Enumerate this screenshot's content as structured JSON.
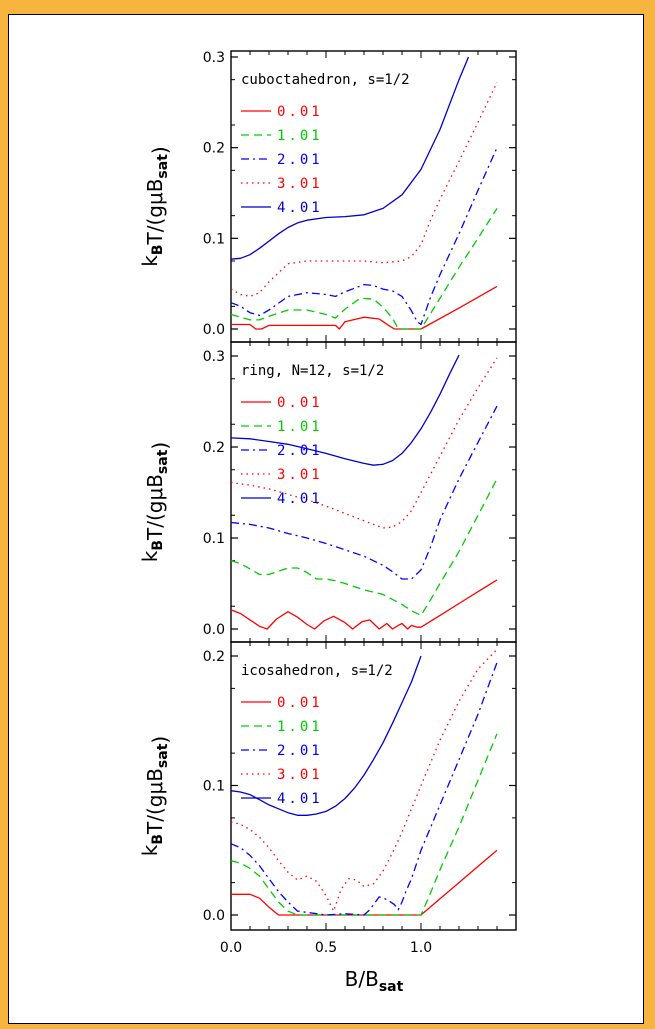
{
  "chart_data": {
    "type": "line",
    "xlabel": "B/B_sat",
    "xlim": [
      0,
      1.5
    ],
    "x_ticks": [
      "0.0",
      "0.5",
      "1.0"
    ],
    "series_styles": [
      {
        "name": "0.01",
        "color": "#ff0000",
        "dash": "none"
      },
      {
        "name": "1.01",
        "color": "#00cc00",
        "dash": "8,5"
      },
      {
        "name": "2.01",
        "color": "#0000ff",
        "dash": "8,4,2,4"
      },
      {
        "name": "3.01",
        "color": "#ff0000",
        "dash": "1.5,4"
      },
      {
        "name": "4.01",
        "color": "#0000cc",
        "dash": "none"
      }
    ],
    "panels": [
      {
        "title": "cuboctahedron, s=1/2",
        "ylabel": "kBT/(gμBsat)",
        "ylim": [
          0,
          0.3
        ],
        "y_ticks": [
          "0.0",
          "0.1",
          "0.2",
          "0.3"
        ],
        "series": [
          {
            "name": "0.01",
            "x": [
              0.0,
              0.05,
              0.1,
              0.13,
              0.16,
              0.2,
              0.3,
              0.45,
              0.55,
              0.57,
              0.6,
              0.7,
              0.78,
              0.83,
              0.86,
              0.88,
              1.0,
              1.2,
              1.4
            ],
            "y": [
              0.005,
              0.005,
              0.005,
              0.0,
              0.0,
              0.004,
              0.004,
              0.004,
              0.004,
              0.0,
              0.008,
              0.013,
              0.011,
              0.004,
              0.0,
              0.0,
              0.0,
              0.023,
              0.047
            ]
          },
          {
            "name": "1.01",
            "x": [
              0.0,
              0.05,
              0.1,
              0.15,
              0.2,
              0.3,
              0.4,
              0.5,
              0.55,
              0.6,
              0.68,
              0.75,
              0.8,
              0.85,
              0.88,
              0.95,
              1.0,
              1.1,
              1.2,
              1.3,
              1.4
            ],
            "y": [
              0.016,
              0.013,
              0.01,
              0.01,
              0.014,
              0.021,
              0.021,
              0.016,
              0.012,
              0.022,
              0.034,
              0.033,
              0.024,
              0.012,
              0.0,
              0.0,
              0.0,
              0.034,
              0.068,
              0.1,
              0.133
            ]
          },
          {
            "name": "2.01",
            "x": [
              0.0,
              0.05,
              0.1,
              0.15,
              0.2,
              0.3,
              0.4,
              0.5,
              0.55,
              0.6,
              0.7,
              0.75,
              0.8,
              0.85,
              0.9,
              0.95,
              0.98,
              1.0,
              1.05,
              1.1,
              1.2,
              1.3,
              1.4
            ],
            "y": [
              0.029,
              0.025,
              0.018,
              0.015,
              0.021,
              0.036,
              0.04,
              0.038,
              0.036,
              0.041,
              0.049,
              0.048,
              0.044,
              0.042,
              0.036,
              0.02,
              0.008,
              0.005,
              0.035,
              0.06,
              0.105,
              0.153,
              0.2
            ]
          },
          {
            "name": "3.01",
            "x": [
              0.0,
              0.05,
              0.1,
              0.15,
              0.2,
              0.3,
              0.4,
              0.5,
              0.6,
              0.7,
              0.8,
              0.9,
              0.95,
              1.0,
              1.05,
              1.1,
              1.2,
              1.3,
              1.4
            ],
            "y": [
              0.044,
              0.038,
              0.036,
              0.04,
              0.052,
              0.072,
              0.075,
              0.075,
              0.075,
              0.075,
              0.073,
              0.075,
              0.08,
              0.093,
              0.12,
              0.143,
              0.185,
              0.228,
              0.272
            ]
          },
          {
            "name": "4.01",
            "x": [
              0.0,
              0.05,
              0.1,
              0.15,
              0.2,
              0.25,
              0.3,
              0.35,
              0.4,
              0.5,
              0.6,
              0.7,
              0.8,
              0.9,
              1.0,
              1.1,
              1.2,
              1.25
            ],
            "y": [
              0.077,
              0.078,
              0.082,
              0.089,
              0.097,
              0.105,
              0.112,
              0.117,
              0.12,
              0.123,
              0.124,
              0.126,
              0.133,
              0.148,
              0.176,
              0.22,
              0.275,
              0.3
            ]
          }
        ]
      },
      {
        "title": "ring, N=12, s=1/2",
        "ylabel": "kBT/(gμBsat)",
        "ylim": [
          0,
          0.3
        ],
        "y_ticks": [
          "0.0",
          "0.1",
          "0.2",
          "0.3"
        ],
        "series": [
          {
            "name": "0.01",
            "x": [
              0.0,
              0.05,
              0.1,
              0.15,
              0.19,
              0.24,
              0.3,
              0.35,
              0.4,
              0.44,
              0.49,
              0.54,
              0.6,
              0.64,
              0.69,
              0.73,
              0.78,
              0.82,
              0.85,
              0.88,
              0.9,
              0.93,
              0.95,
              0.98,
              1.0,
              1.1,
              1.2,
              1.3,
              1.4
            ],
            "y": [
              0.021,
              0.017,
              0.01,
              0.003,
              0.0,
              0.011,
              0.019,
              0.013,
              0.005,
              0.0,
              0.009,
              0.014,
              0.007,
              0.0,
              0.008,
              0.01,
              0.0,
              0.006,
              0.0,
              0.004,
              0.006,
              0.0,
              0.004,
              0.002,
              0.002,
              0.015,
              0.028,
              0.041,
              0.054
            ]
          },
          {
            "name": "1.01",
            "x": [
              0.0,
              0.05,
              0.1,
              0.15,
              0.2,
              0.3,
              0.35,
              0.4,
              0.45,
              0.5,
              0.55,
              0.6,
              0.7,
              0.8,
              0.9,
              0.95,
              1.0,
              1.05,
              1.1,
              1.2,
              1.3,
              1.4
            ],
            "y": [
              0.075,
              0.072,
              0.066,
              0.06,
              0.06,
              0.067,
              0.067,
              0.062,
              0.055,
              0.055,
              0.053,
              0.05,
              0.043,
              0.038,
              0.027,
              0.02,
              0.015,
              0.032,
              0.05,
              0.085,
              0.125,
              0.165
            ]
          },
          {
            "name": "2.01",
            "x": [
              0.0,
              0.1,
              0.2,
              0.3,
              0.4,
              0.5,
              0.6,
              0.7,
              0.8,
              0.85,
              0.9,
              0.95,
              1.0,
              1.05,
              1.1,
              1.2,
              1.3,
              1.4
            ],
            "y": [
              0.117,
              0.115,
              0.111,
              0.105,
              0.1,
              0.094,
              0.087,
              0.08,
              0.07,
              0.063,
              0.055,
              0.055,
              0.065,
              0.09,
              0.12,
              0.165,
              0.205,
              0.245
            ]
          },
          {
            "name": "3.01",
            "x": [
              0.0,
              0.1,
              0.2,
              0.3,
              0.4,
              0.5,
              0.6,
              0.7,
              0.8,
              0.85,
              0.9,
              0.95,
              1.0,
              1.1,
              1.2,
              1.3,
              1.4
            ],
            "y": [
              0.161,
              0.158,
              0.154,
              0.148,
              0.142,
              0.135,
              0.127,
              0.119,
              0.111,
              0.112,
              0.118,
              0.13,
              0.15,
              0.19,
              0.23,
              0.265,
              0.298
            ]
          },
          {
            "name": "4.01",
            "x": [
              0.0,
              0.1,
              0.2,
              0.3,
              0.4,
              0.5,
              0.6,
              0.7,
              0.75,
              0.8,
              0.85,
              0.9,
              0.95,
              1.0,
              1.05,
              1.1,
              1.15,
              1.2
            ],
            "y": [
              0.21,
              0.209,
              0.206,
              0.203,
              0.198,
              0.193,
              0.187,
              0.182,
              0.18,
              0.181,
              0.185,
              0.193,
              0.205,
              0.22,
              0.238,
              0.258,
              0.28,
              0.301
            ]
          }
        ]
      },
      {
        "title": "icosahedron, s=1/2",
        "ylabel": "kBT/(gμBsat)",
        "ylim": [
          0,
          0.2
        ],
        "y_ticks": [
          "0.0",
          "0.1",
          "0.2"
        ],
        "series": [
          {
            "name": "0.01",
            "x": [
              0.0,
              0.05,
              0.1,
              0.15,
              0.2,
              0.25,
              0.3,
              0.98,
              1.0,
              1.1,
              1.2,
              1.3,
              1.4
            ],
            "y": [
              0.016,
              0.016,
              0.016,
              0.013,
              0.006,
              0.0,
              0.0,
              0.0,
              0.0,
              0.0125,
              0.025,
              0.0375,
              0.05
            ]
          },
          {
            "name": "1.01",
            "x": [
              0.0,
              0.05,
              0.1,
              0.15,
              0.2,
              0.25,
              0.3,
              0.35,
              0.98,
              1.0,
              1.05,
              1.1,
              1.2,
              1.3,
              1.4
            ],
            "y": [
              0.042,
              0.04,
              0.036,
              0.03,
              0.02,
              0.01,
              0.003,
              0.0,
              0.0,
              0.0,
              0.017,
              0.035,
              0.068,
              0.104,
              0.14
            ]
          },
          {
            "name": "2.01",
            "x": [
              0.0,
              0.05,
              0.1,
              0.15,
              0.2,
              0.25,
              0.3,
              0.35,
              0.4,
              0.5,
              0.6,
              0.7,
              0.73,
              0.78,
              0.82,
              0.86,
              0.88,
              0.9,
              0.92,
              0.95,
              1.0,
              1.1,
              1.2,
              1.3,
              1.4
            ],
            "y": [
              0.055,
              0.052,
              0.046,
              0.038,
              0.028,
              0.018,
              0.01,
              0.003,
              0.002,
              0.0,
              0.001,
              0.0,
              0.004,
              0.014,
              0.012,
              0.008,
              0.004,
              0.01,
              0.018,
              0.028,
              0.05,
              0.085,
              0.12,
              0.155,
              0.195
            ]
          },
          {
            "name": "3.01",
            "x": [
              0.0,
              0.05,
              0.1,
              0.15,
              0.2,
              0.25,
              0.3,
              0.35,
              0.4,
              0.45,
              0.5,
              0.54,
              0.58,
              0.62,
              0.66,
              0.7,
              0.75,
              0.8,
              0.85,
              0.9,
              0.95,
              1.0,
              1.1,
              1.2,
              1.3,
              1.4
            ],
            "y": [
              0.072,
              0.07,
              0.066,
              0.06,
              0.052,
              0.042,
              0.033,
              0.027,
              0.03,
              0.026,
              0.015,
              0.003,
              0.02,
              0.028,
              0.027,
              0.022,
              0.024,
              0.034,
              0.048,
              0.064,
              0.082,
              0.1,
              0.135,
              0.165,
              0.19,
              0.205
            ]
          },
          {
            "name": "4.01",
            "x": [
              0.0,
              0.05,
              0.1,
              0.15,
              0.2,
              0.25,
              0.3,
              0.35,
              0.4,
              0.45,
              0.5,
              0.55,
              0.6,
              0.65,
              0.7,
              0.75,
              0.8,
              0.85,
              0.9,
              0.95,
              1.0
            ],
            "y": [
              0.096,
              0.095,
              0.093,
              0.089,
              0.085,
              0.082,
              0.079,
              0.077,
              0.077,
              0.078,
              0.08,
              0.084,
              0.09,
              0.098,
              0.108,
              0.12,
              0.133,
              0.148,
              0.164,
              0.18,
              0.2
            ]
          }
        ]
      }
    ]
  }
}
